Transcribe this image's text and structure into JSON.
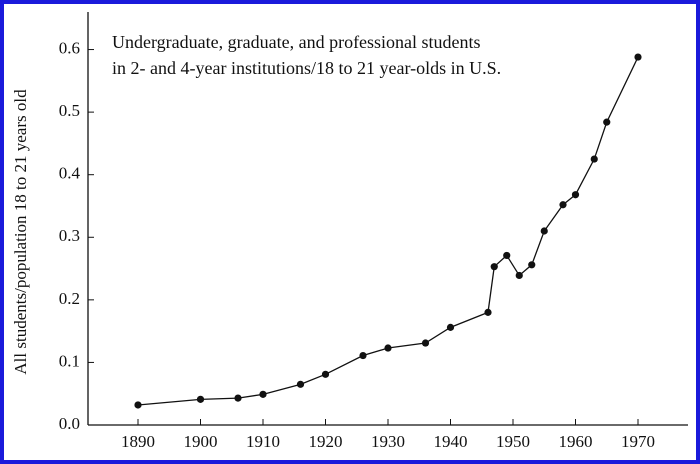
{
  "chart_data": {
    "type": "line",
    "annotation": [
      "Undergraduate, graduate, and professional students",
      "in 2- and 4-year institutions/18 to 21 year-olds in U.S."
    ],
    "y_label": "All students/population 18 to 21 years old",
    "x": [
      1890,
      1900,
      1906,
      1910,
      1916,
      1920,
      1926,
      1930,
      1936,
      1940,
      1946,
      1947,
      1949,
      1951,
      1953,
      1955,
      1958,
      1960,
      1963,
      1965,
      1970
    ],
    "series": [
      {
        "color": "#111111",
        "values": [
          0.032,
          0.041,
          0.043,
          0.049,
          0.065,
          0.081,
          0.111,
          0.123,
          0.131,
          0.156,
          0.18,
          0.253,
          0.271,
          0.239,
          0.256,
          0.31,
          0.352,
          0.368,
          0.425,
          0.484,
          0.588
        ]
      }
    ],
    "xlim": [
      1882,
      1978
    ],
    "xticks": [
      1890,
      1900,
      1910,
      1920,
      1930,
      1940,
      1950,
      1960,
      1970
    ],
    "ylim": [
      0,
      0.66
    ],
    "yticks": [
      {
        "value": 0,
        "label": "0.0"
      },
      0.1,
      0.2,
      0.3,
      0.4,
      0.5,
      0.6
    ]
  }
}
